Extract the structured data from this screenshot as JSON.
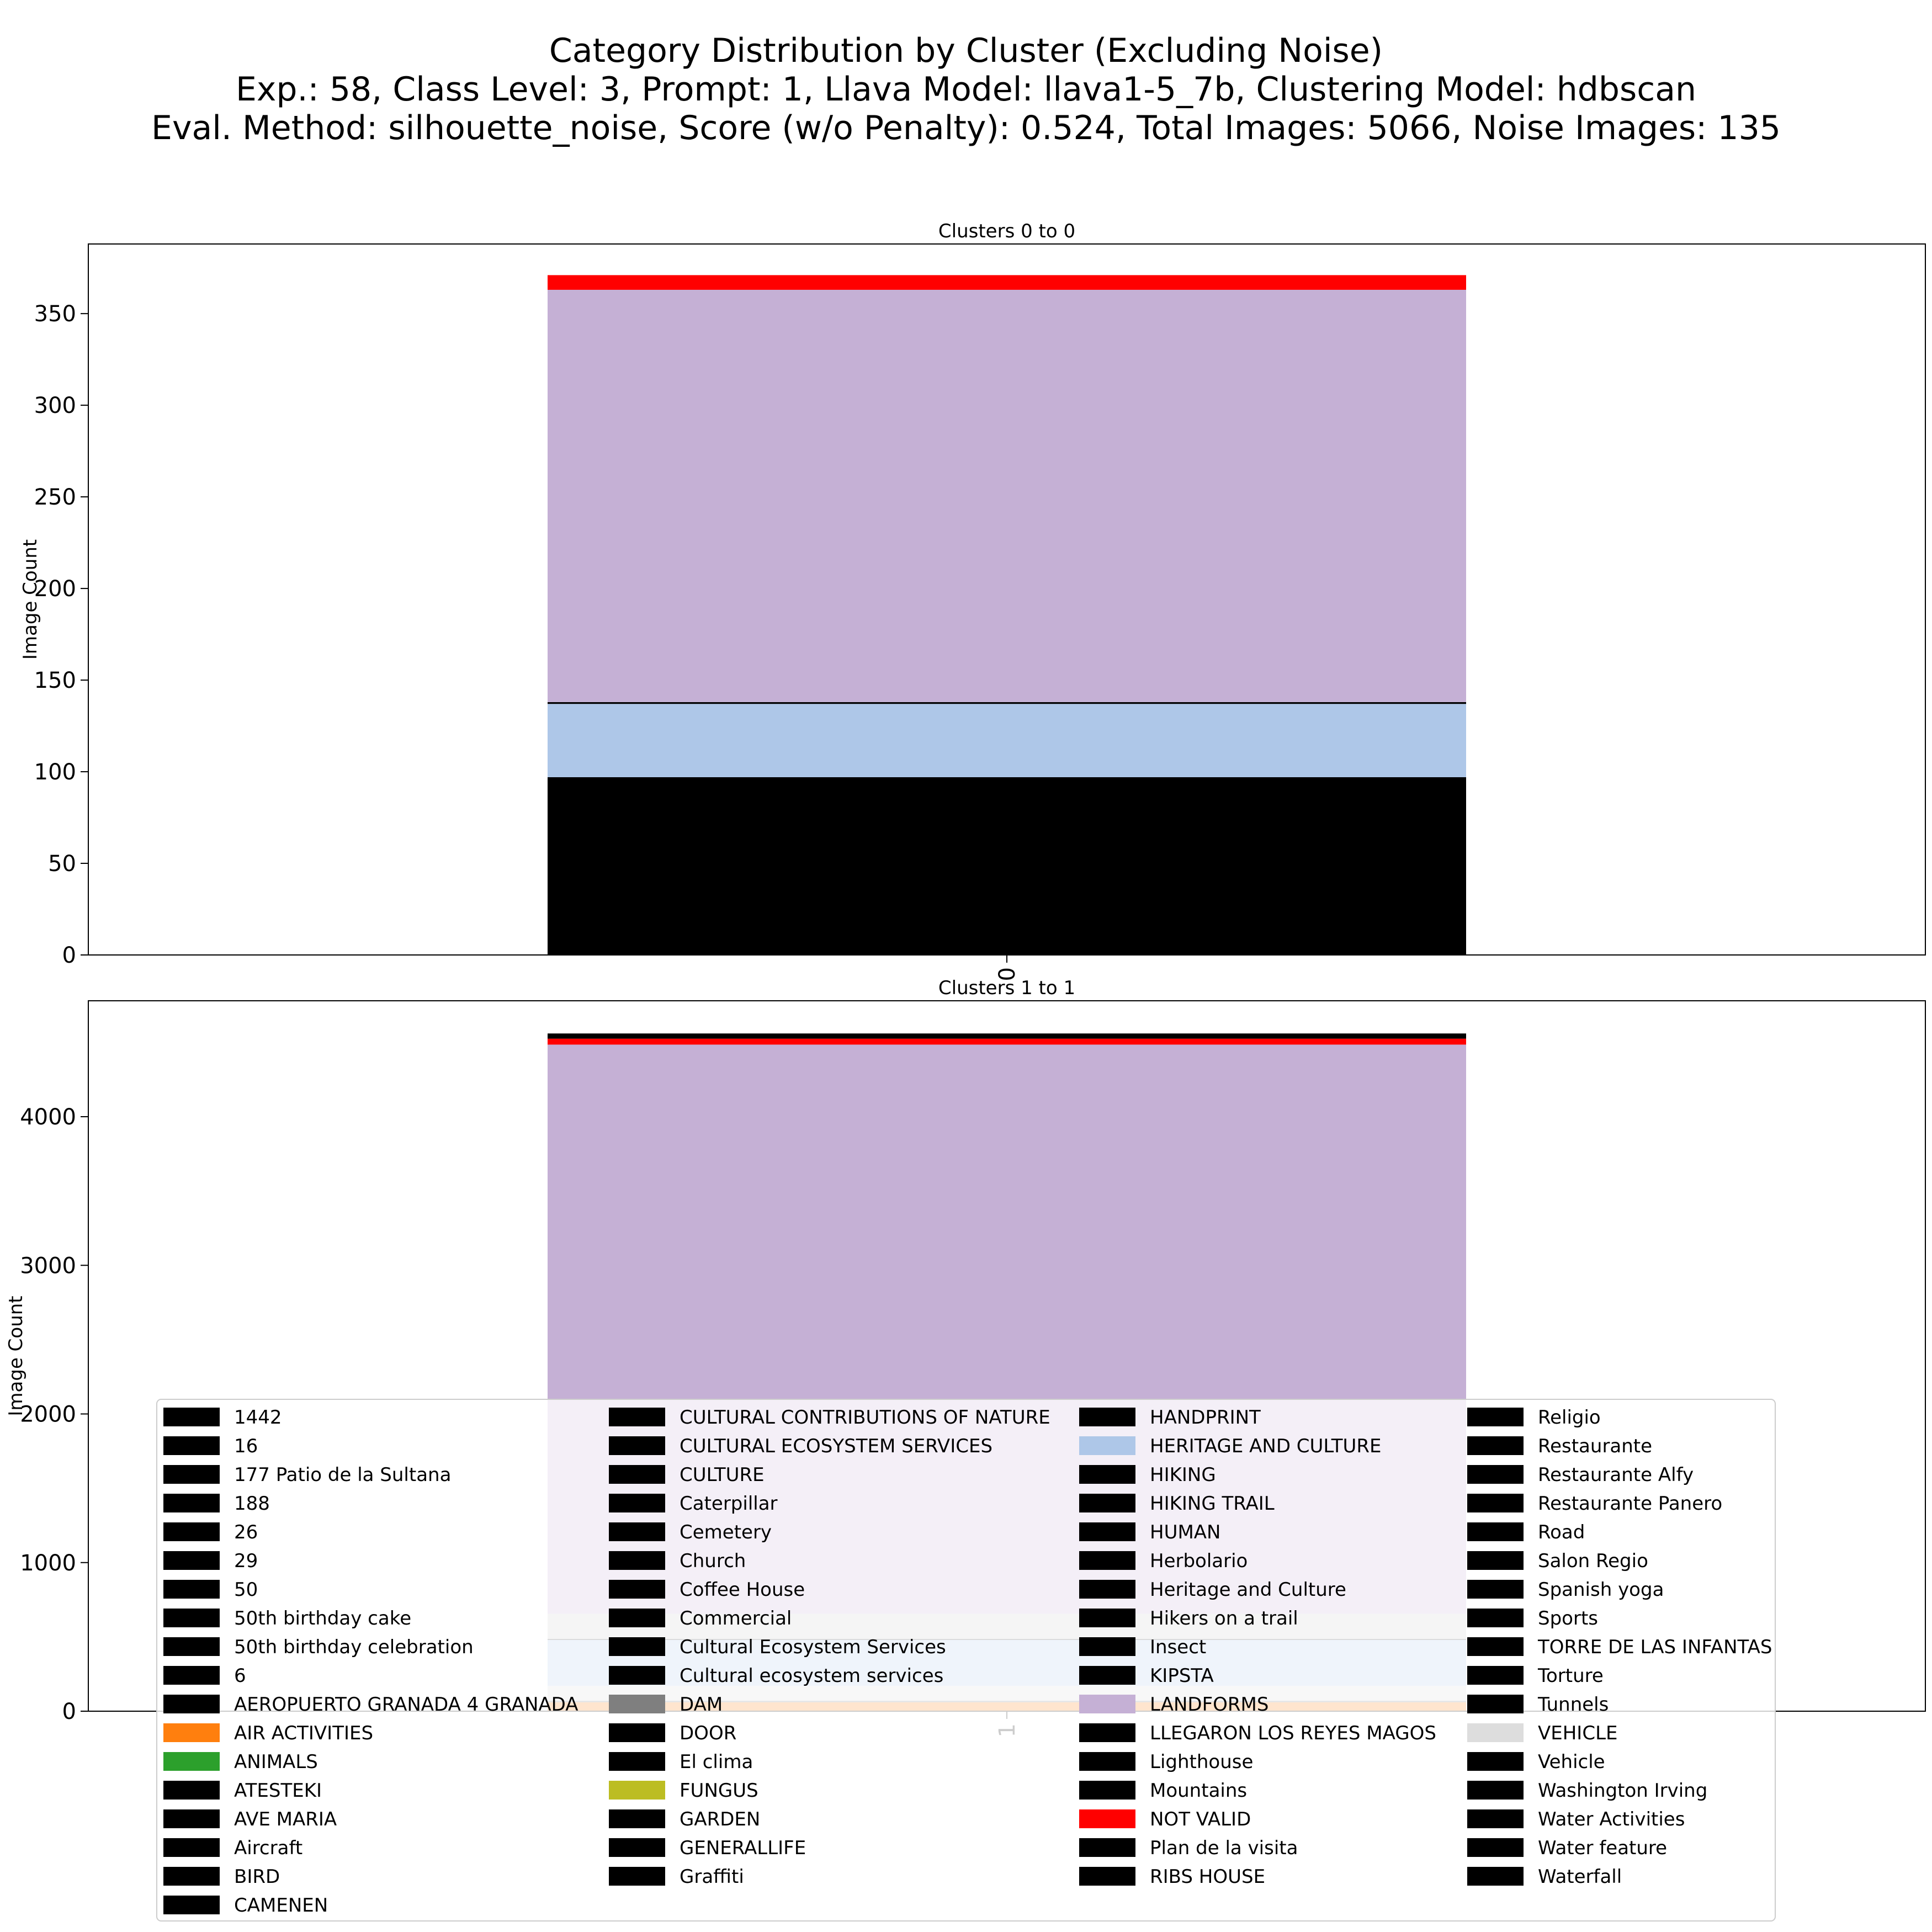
{
  "figure": {
    "title_lines": [
      "Category Distribution by Cluster (Excluding Noise)",
      "Exp.: 58, Class Level: 3, Prompt: 1, Llava Model: llava1-5_7b, Clustering Model: hdbscan",
      "Eval. Method: silhouette_noise, Score (w/o Penalty): 0.524, Total Images: 5066, Noise Images: 135"
    ]
  },
  "chart_data": [
    {
      "type": "bar",
      "stacked": true,
      "title": "Clusters 0 to 0",
      "ylabel": "Image Count",
      "xlabel": "",
      "categories": [
        "0"
      ],
      "ylim": [
        0,
        388
      ],
      "yticks": [
        0,
        50,
        100,
        150,
        200,
        250,
        300,
        350
      ],
      "series": [
        {
          "name": "1442",
          "color": "#000000",
          "values": [
            97
          ]
        },
        {
          "name": "HERITAGE AND CULTURE",
          "color": "#aec7e8",
          "values": [
            40
          ]
        },
        {
          "name": "Heritage and Culture",
          "color": "#000000",
          "values": [
            1
          ]
        },
        {
          "name": "LANDFORMS",
          "color": "#c5b0d5",
          "values": [
            225
          ]
        },
        {
          "name": "NOT VALID",
          "color": "#ff0000",
          "values": [
            8
          ]
        }
      ]
    },
    {
      "type": "bar",
      "stacked": true,
      "title": "Clusters 1 to 1",
      "ylabel": "Image Count",
      "xlabel": "",
      "categories": [
        "1"
      ],
      "ylim": [
        0,
        4780
      ],
      "yticks": [
        0,
        1000,
        2000,
        3000,
        4000
      ],
      "series": [
        {
          "name": "AIR ACTIVITIES",
          "color": "#ff7f0e",
          "values": [
            60
          ]
        },
        {
          "name": "DAM",
          "color": "#7f7f7f",
          "values": [
            10
          ]
        },
        {
          "name": "VEHICLE",
          "color": "#dddddd",
          "values": [
            100
          ]
        },
        {
          "name": "HERITAGE AND CULTURE",
          "color": "#aec7e8",
          "values": [
            310
          ]
        },
        {
          "name": "Commercial",
          "color": "#000000",
          "values": [
            5
          ]
        },
        {
          "name": "VEHICLE",
          "color": "#cccccc",
          "values": [
            170
          ]
        },
        {
          "name": "LANDFORMS",
          "color": "#c5b0d5",
          "values": [
            3830
          ]
        },
        {
          "name": "NOT VALID",
          "color": "#ff0000",
          "values": [
            40
          ]
        },
        {
          "name": "Heritage and Culture",
          "color": "#000000",
          "values": [
            35
          ]
        }
      ]
    }
  ],
  "legend": {
    "columns": [
      [
        {
          "label": "1442",
          "color": "#000000"
        },
        {
          "label": "16",
          "color": "#000000"
        },
        {
          "label": "177 Patio de la Sultana",
          "color": "#000000"
        },
        {
          "label": "188",
          "color": "#000000"
        },
        {
          "label": "26",
          "color": "#000000"
        },
        {
          "label": "29",
          "color": "#000000"
        },
        {
          "label": "50",
          "color": "#000000"
        },
        {
          "label": "50th birthday cake",
          "color": "#000000"
        },
        {
          "label": "50th birthday celebration",
          "color": "#000000"
        },
        {
          "label": "6",
          "color": "#000000"
        },
        {
          "label": "AEROPUERTO GRANADA 4 GRANADA",
          "color": "#000000"
        },
        {
          "label": "AIR ACTIVITIES",
          "color": "#ff7f0e"
        },
        {
          "label": "ANIMALS",
          "color": "#2ca02c"
        },
        {
          "label": "ATESTEKI",
          "color": "#000000"
        },
        {
          "label": "AVE MARIA",
          "color": "#000000"
        },
        {
          "label": "Aircraft",
          "color": "#000000"
        },
        {
          "label": "BIRD",
          "color": "#000000"
        },
        {
          "label": "CAMENEN",
          "color": "#000000"
        }
      ],
      [
        {
          "label": "CULTURAL CONTRIBUTIONS OF NATURE",
          "color": "#000000"
        },
        {
          "label": "CULTURAL ECOSYSTEM SERVICES",
          "color": "#000000"
        },
        {
          "label": "CULTURE",
          "color": "#000000"
        },
        {
          "label": "Caterpillar",
          "color": "#000000"
        },
        {
          "label": "Cemetery",
          "color": "#000000"
        },
        {
          "label": "Church",
          "color": "#000000"
        },
        {
          "label": "Coffee House",
          "color": "#000000"
        },
        {
          "label": "Commercial",
          "color": "#000000"
        },
        {
          "label": "Cultural Ecosystem Services",
          "color": "#000000"
        },
        {
          "label": "Cultural ecosystem services",
          "color": "#000000"
        },
        {
          "label": "DAM",
          "color": "#7f7f7f"
        },
        {
          "label": "DOOR",
          "color": "#000000"
        },
        {
          "label": "El clima",
          "color": "#000000"
        },
        {
          "label": "FUNGUS",
          "color": "#bcbd22"
        },
        {
          "label": "GARDEN",
          "color": "#000000"
        },
        {
          "label": "GENERALLIFE",
          "color": "#000000"
        },
        {
          "label": "Graffiti",
          "color": "#000000"
        }
      ],
      [
        {
          "label": "HANDPRINT",
          "color": "#000000"
        },
        {
          "label": "HERITAGE AND CULTURE",
          "color": "#aec7e8"
        },
        {
          "label": "HIKING",
          "color": "#000000"
        },
        {
          "label": "HIKING TRAIL",
          "color": "#000000"
        },
        {
          "label": "HUMAN",
          "color": "#000000"
        },
        {
          "label": "Herbolario",
          "color": "#000000"
        },
        {
          "label": "Heritage and Culture",
          "color": "#000000"
        },
        {
          "label": "Hikers on a trail",
          "color": "#000000"
        },
        {
          "label": "Insect",
          "color": "#000000"
        },
        {
          "label": "KIPSTA",
          "color": "#000000"
        },
        {
          "label": "LANDFORMS",
          "color": "#c5b0d5"
        },
        {
          "label": "LLEGARON LOS REYES MAGOS",
          "color": "#000000"
        },
        {
          "label": "Lighthouse",
          "color": "#000000"
        },
        {
          "label": "Mountains",
          "color": "#000000"
        },
        {
          "label": "NOT VALID",
          "color": "#ff0000"
        },
        {
          "label": "Plan de la visita",
          "color": "#000000"
        },
        {
          "label": "RIBS HOUSE",
          "color": "#000000"
        }
      ],
      [
        {
          "label": "Religio",
          "color": "#000000"
        },
        {
          "label": "Restaurante",
          "color": "#000000"
        },
        {
          "label": "Restaurante Alfy",
          "color": "#000000"
        },
        {
          "label": "Restaurante Panero",
          "color": "#000000"
        },
        {
          "label": "Road",
          "color": "#000000"
        },
        {
          "label": "Salon Regio",
          "color": "#000000"
        },
        {
          "label": "Spanish yoga",
          "color": "#000000"
        },
        {
          "label": "Sports",
          "color": "#000000"
        },
        {
          "label": "TORRE DE LAS INFANTAS",
          "color": "#000000"
        },
        {
          "label": "Torture",
          "color": "#000000"
        },
        {
          "label": "Tunnels",
          "color": "#000000"
        },
        {
          "label": "VEHICLE",
          "color": "#dddddd"
        },
        {
          "label": "Vehicle",
          "color": "#000000"
        },
        {
          "label": "Washington Irving",
          "color": "#000000"
        },
        {
          "label": "Water Activities",
          "color": "#000000"
        },
        {
          "label": "Water feature",
          "color": "#000000"
        },
        {
          "label": "Waterfall",
          "color": "#000000"
        }
      ]
    ]
  }
}
